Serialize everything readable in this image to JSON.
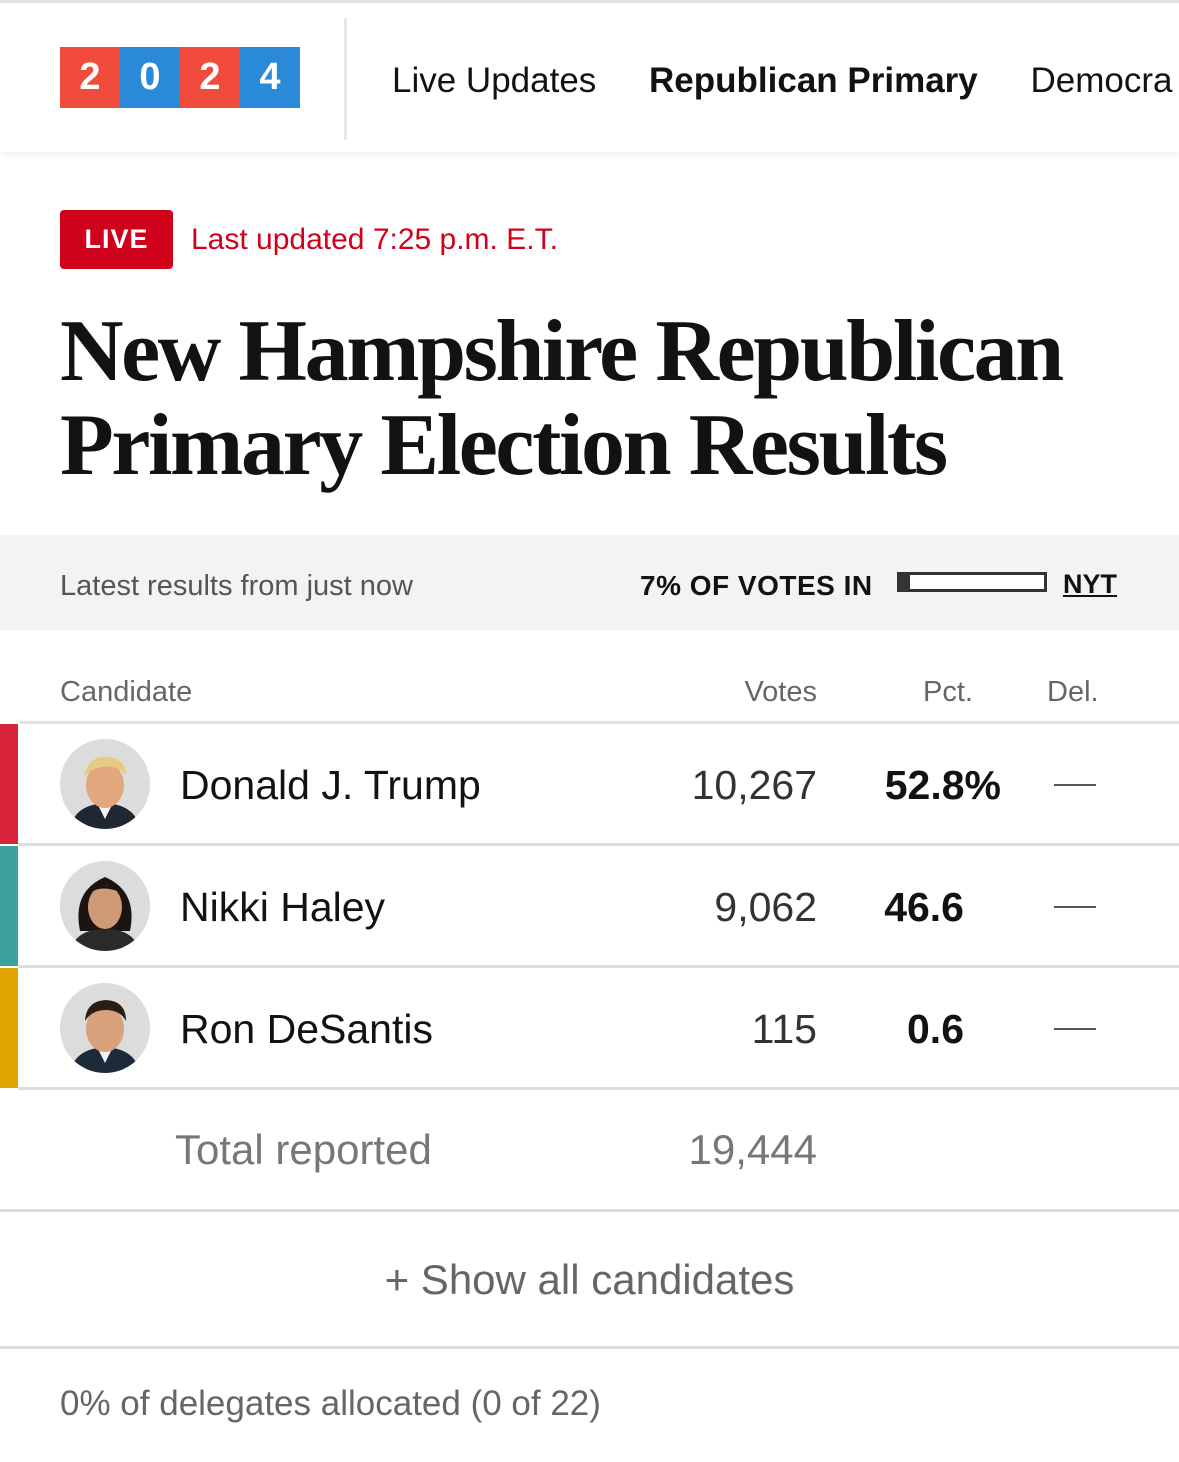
{
  "nav": {
    "logo_digits": [
      "2",
      "0",
      "2",
      "4"
    ],
    "logo_colors": [
      "#f04b3c",
      "#2b8ad8",
      "#f04b3c",
      "#2b8ad8"
    ],
    "links": [
      "Live Updates",
      "Republican Primary",
      "Democra"
    ]
  },
  "header": {
    "live_label": "LIVE",
    "updated": "Last updated 7:25 p.m. E.T.",
    "title": "New Hampshire Republican Primary Election Results"
  },
  "status": {
    "latest": "Latest results from just now",
    "votes_in": "7% OF VOTES IN",
    "votes_in_fraction": 0.07,
    "source": "NYT"
  },
  "table": {
    "headers": {
      "candidate": "Candidate",
      "votes": "Votes",
      "pct": "Pct.",
      "del": "Del."
    },
    "rows": [
      {
        "name": "Donald J. Trump",
        "votes": "10,267",
        "pct": "52.8%",
        "del": "—",
        "color": "#d8253a"
      },
      {
        "name": "Nikki Haley",
        "votes": "9,062",
        "pct": "46.6",
        "del": "—",
        "color": "#3ba39c"
      },
      {
        "name": "Ron DeSantis",
        "votes": "115",
        "pct": "0.6",
        "del": "—",
        "color": "#e0a400"
      }
    ],
    "total_label": "Total reported",
    "total_votes": "19,444"
  },
  "show_all": "+ Show all candidates",
  "delegates": "0% of delegates allocated (0 of 22)"
}
